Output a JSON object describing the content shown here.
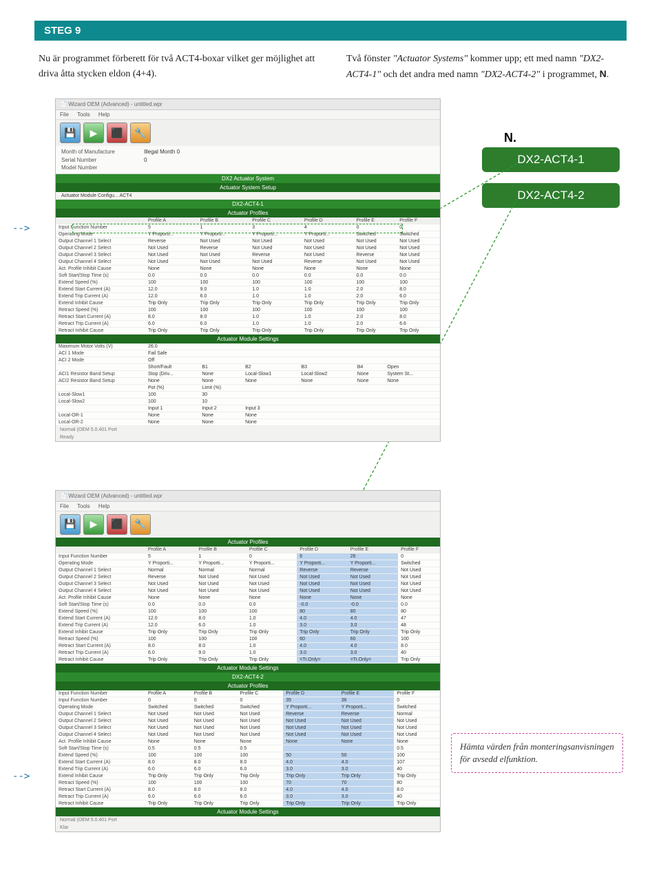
{
  "step_bar": "STEG 9",
  "intro_left": "Nu är programmet förberett för två ACT4-boxar vilket ger möjlighet att driva åtta stycken eldon (4+4).",
  "intro_right_1": "Två fönster ",
  "intro_right_em": "\"Actuator Systems\"",
  "intro_right_2": " kommer upp; ett med namn ",
  "intro_right_em2": "\"DX2-ACT4-1\"",
  "intro_right_3": " och det andra med namn ",
  "intro_right_em3": "\"DX2-ACT4-2\"",
  "intro_right_4": " i programmet, ",
  "intro_right_N": "N",
  "callout_N": "N.",
  "pill1": "DX2-ACT4-1",
  "pill2": "DX2-ACT4-2",
  "arrow": "-->",
  "note_text": "Hämta värden från monteringsanvisningen för avsedd elfunktion.",
  "ss_title": "Wizard OEM (Advanced) - untitled.wpr",
  "menu": {
    "file": "File",
    "tools": "Tools",
    "help": "Help"
  },
  "info": {
    "mom": "Month of Manufacture",
    "mom_v": "Illegal Month 0",
    "sn": "Serial Number",
    "sn_v": "0",
    "mn": "Model Number",
    "mn_v": ""
  },
  "hdr_dx2": "DX2 Actuator System",
  "hdr_setup": "Actuator System Setup",
  "hdr_act4_cfg": "Actuator Module Configu... ACT4",
  "hdr_dx2_act4_1": "DX2-ACT4-1",
  "hdr_profiles": "Actuator Profiles",
  "hdr_module_settings": "Actuator Module Settings",
  "hdr_dx2_act4_2": "DX2-ACT4-2",
  "profile_cols": [
    "Profile A",
    "Profile B",
    "Profile C",
    "Profile D",
    "Profile E",
    "Profile F"
  ],
  "profile_rows1": [
    [
      "Input Function Number",
      "5",
      "1",
      "3",
      "4",
      "0",
      "0"
    ],
    [
      "Operating Mode",
      "Y Proporti...",
      "Y Proporti...",
      "Y Proporti...",
      "Y Proporti...",
      "Switched",
      "Switched"
    ],
    [
      "Output Channel 1 Select",
      "Reverse",
      "Not Used",
      "Not Used",
      "Not Used",
      "Not Used",
      "Not Used"
    ],
    [
      "Output Channel 2 Select",
      "Not Used",
      "Reverse",
      "Not Used",
      "Not Used",
      "Not Used",
      "Not Used"
    ],
    [
      "Output Channel 3 Select",
      "Not Used",
      "Not Used",
      "Reverse",
      "Not Used",
      "Reverse",
      "Not Used"
    ],
    [
      "Output Channel 4 Select",
      "Not Used",
      "Not Used",
      "Not Used",
      "Reverse",
      "Not Used",
      "Not Used"
    ],
    [
      "Act. Profile Inhibit Cause",
      "None",
      "None",
      "None",
      "None",
      "None",
      "None"
    ],
    [
      "Soft Start/Stop Time (s)",
      "0.0",
      "0.0",
      "0.0",
      "0.0",
      "0.0",
      "0.0"
    ],
    [
      "Extend Speed (%)",
      "100",
      "100",
      "100",
      "100",
      "100",
      "100"
    ],
    [
      "Extend Start Current (A)",
      "12.0",
      "9.0",
      "1.0",
      "1.0",
      "2.0",
      "8.0"
    ],
    [
      "Extend Trip Current (A)",
      "12.0",
      "6.0",
      "1.0",
      "1.0",
      "2.0",
      "6.0"
    ],
    [
      "Extend Inhibit Cause",
      "Trip Only",
      "Trip Only",
      "Trip Only",
      "Trip Only",
      "Trip Only",
      "Trip Only"
    ],
    [
      "Retract Speed (%)",
      "100",
      "100",
      "100",
      "100",
      "100",
      "100"
    ],
    [
      "Retract Start Current (A)",
      "8.0",
      "8.0",
      "1.0",
      "1.0",
      "2.0",
      "8.0"
    ],
    [
      "Retract Trip Current (A)",
      "6.0",
      "6.0",
      "1.0",
      "1.0",
      "2.0",
      "6.6"
    ],
    [
      "Retract Inhibit Cause",
      "Trip Only",
      "Trip Only",
      "Trip Only",
      "Trip Only",
      "Trip Only",
      "Trip Only"
    ]
  ],
  "module_rows": [
    [
      "Maximum Motor Volts (V)",
      "26.0",
      "",
      "",
      "",
      "",
      ""
    ],
    [
      "ACI 1 Mode",
      "Fail Safe",
      "",
      "",
      "",
      "",
      ""
    ],
    [
      "ACI 2 Mode",
      "Off",
      "",
      "",
      "",
      "",
      ""
    ],
    [
      "",
      "Short/Fault",
      "B1",
      "B2",
      "B3",
      "B4",
      "Open"
    ],
    [
      "ACI1 Resistor Band Setup",
      "Stop (Driv...",
      "None",
      "Local-Slow1",
      "Local-Slow2",
      "None",
      "System St..."
    ],
    [
      "ACI2 Resistor Band Setup",
      "None",
      "None",
      "None",
      "None",
      "None",
      "None"
    ],
    [
      "",
      "Pot (%)",
      "Limit (%)",
      "",
      "",
      "",
      ""
    ],
    [
      "Local-Slow1",
      "100",
      "30",
      "",
      "",
      "",
      ""
    ],
    [
      "Local-Slow2",
      "100",
      "10",
      "",
      "",
      "",
      ""
    ],
    [
      "",
      "Input 1",
      "Input 2",
      "Input 3",
      "",
      "",
      ""
    ],
    [
      "Local-OR-1",
      "None",
      "None",
      "None",
      "",
      "",
      ""
    ],
    [
      "Local-OR-2",
      "None",
      "None",
      "None",
      "",
      "",
      ""
    ]
  ],
  "status_text": "Normal  (OEM 5.0.401 Port",
  "ready": "Ready",
  "klar": "Klar",
  "profile_rows2a": [
    [
      "Input Function Number",
      "5",
      "1",
      "0",
      "6",
      "26",
      "0"
    ],
    [
      "Operating Mode",
      "Y Proporti...",
      "Y Proporti...",
      "Y Proporti...",
      "Y Proporti...",
      "Y Proporti...",
      "Switched"
    ],
    [
      "Output Channel 1 Select",
      "Normal",
      "Normal",
      "Normal",
      "Reverse",
      "Reverse",
      "Not Used"
    ],
    [
      "Output Channel 2 Select",
      "Reverse",
      "Not Used",
      "Not Used",
      "Not Used",
      "Not Used",
      "Not Used"
    ],
    [
      "Output Channel 3 Select",
      "Not Used",
      "Not Used",
      "Not Used",
      "Not Used",
      "Not Used",
      "Not Used"
    ],
    [
      "Output Channel 4 Select",
      "Not Used",
      "Not Used",
      "Not Used",
      "Not Used",
      "Not Used",
      "Not Used"
    ],
    [
      "Act. Profile Inhibit Cause",
      "None",
      "None",
      "None",
      "None",
      "None",
      "None"
    ],
    [
      "Soft Start/Stop Time (s)",
      "0.0",
      "0.0",
      "0.0",
      "-0.0",
      "-0.0",
      "0.0"
    ],
    [
      "Extend Speed (%)",
      "100",
      "100",
      "100",
      "80",
      "80",
      "80"
    ],
    [
      "Extend Start Current (A)",
      "12.0",
      "8.0",
      "1.0",
      "4.0",
      "4.0",
      "47"
    ],
    [
      "Extend Trip Current (A)",
      "12.0",
      "6.0",
      "1.0",
      "3.0",
      "3.0",
      "48"
    ],
    [
      "Extend Inhibit Cause",
      "Trip Only",
      "Trip Only",
      "Trip Only",
      "Trip Only",
      "Trip Only",
      "Trip Only"
    ],
    [
      "Retract Speed (%)",
      "100",
      "100",
      "100",
      "60",
      "60",
      "100"
    ],
    [
      "Retract Start Current (A)",
      "8.0",
      "8.0",
      "1.0",
      "4.0",
      "4.0",
      "8.0"
    ],
    [
      "Retract Trip Current (A)",
      "6.0",
      "9.0",
      "1.0",
      "3.0",
      "3.0",
      "40"
    ],
    [
      "Retract Inhibit Cause",
      "Trip Only",
      "Trip Only",
      "Trip Only",
      "=Tr.Only=",
      "=Tr.Only=",
      "Trip Only"
    ]
  ],
  "profile_rows2b": [
    [
      "Input Function Number",
      "Profile A",
      "Profile B",
      "Profile C",
      "Profile D",
      "Profile E",
      "Profile F"
    ],
    [
      "Input Function Number",
      "0",
      "0",
      "0",
      "35",
      "36",
      "0"
    ],
    [
      "Operating Mode",
      "Switched",
      "Switched",
      "Switched",
      "Y Proporti...",
      "Y Proporti...",
      "Switched"
    ],
    [
      "Output Channel 1 Select",
      "Not Used",
      "Not Used",
      "Not Used",
      "Reverse",
      "Reverse",
      "Normal"
    ],
    [
      "Output Channel 2 Select",
      "Not Used",
      "Not Used",
      "Not Used",
      "Not Used",
      "Not Used",
      "Not Used"
    ],
    [
      "Output Channel 3 Select",
      "Not Used",
      "Not Used",
      "Not Used",
      "Not Used",
      "Not Used",
      "Not Used"
    ],
    [
      "Output Channel 4 Select",
      "Not Used",
      "Not Used",
      "Not Used",
      "Not Used",
      "Not Used",
      "Not Used"
    ],
    [
      "Act. Profile Inhibit Cause",
      "None",
      "None",
      "None",
      "None",
      "None",
      "None"
    ],
    [
      "Soft Start/Stop Time (s)",
      "0.5",
      "0.5",
      "0.5",
      "",
      "",
      "0.5"
    ],
    [
      "Extend Speed (%)",
      "100",
      "100",
      "100",
      "50",
      "50",
      "100"
    ],
    [
      "Extend Start Current (A)",
      "8.0",
      "8.0",
      "8.0",
      "4.0",
      "4.0",
      "107"
    ],
    [
      "Extend Trip Current (A)",
      "6.0",
      "6.0",
      "6.0",
      "3.0",
      "3.0",
      "40"
    ],
    [
      "Extend Inhibit Cause",
      "Trip Only",
      "Trip Only",
      "Trip Only",
      "Trip Only",
      "Trip Only",
      "Trip Only"
    ],
    [
      "Retract Speed (%)",
      "100",
      "100",
      "100",
      "70",
      "70",
      "80"
    ],
    [
      "Retract Start Current (A)",
      "8.0",
      "8.0",
      "8.0",
      "4.0",
      "4.0",
      "8.0"
    ],
    [
      "Retract Trip Current (A)",
      "6.0",
      "6.0",
      "6.0",
      "3.0",
      "3.0",
      "40"
    ],
    [
      "Retract Inhibit Cause",
      "Trip Only",
      "Trip Only",
      "Trip Only",
      "Trip Only",
      "Trip Only",
      "Trip Only"
    ]
  ]
}
